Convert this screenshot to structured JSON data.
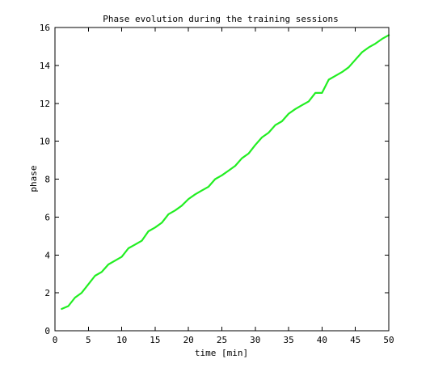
{
  "chart_data": {
    "type": "line",
    "title": "Phase evolution during the training sessions",
    "xlabel": "time [min]",
    "ylabel": "phase",
    "xlim": [
      0,
      50
    ],
    "ylim": [
      0,
      16
    ],
    "xticks": [
      0,
      5,
      10,
      15,
      20,
      25,
      30,
      35,
      40,
      45,
      50
    ],
    "yticks": [
      0,
      2,
      4,
      6,
      8,
      10,
      12,
      14,
      16
    ],
    "grid": false,
    "legend": "none",
    "series": [
      {
        "color": "#22ee22",
        "x": [
          1,
          2,
          3,
          4,
          5,
          6,
          7,
          8,
          9,
          10,
          11,
          12,
          13,
          14,
          15,
          16,
          17,
          18,
          19,
          20,
          21,
          22,
          23,
          24,
          25,
          26,
          27,
          28,
          29,
          30,
          31,
          32,
          33,
          34,
          35,
          36,
          37,
          38,
          39,
          40,
          41,
          42,
          43,
          44,
          45,
          46,
          47,
          48,
          49,
          50
        ],
        "y": [
          1.15,
          1.3,
          1.75,
          2.0,
          2.45,
          2.9,
          3.1,
          3.5,
          3.7,
          3.9,
          4.35,
          4.55,
          4.75,
          5.25,
          5.45,
          5.7,
          6.15,
          6.35,
          6.6,
          6.95,
          7.2,
          7.4,
          7.6,
          8.0,
          8.2,
          8.45,
          8.7,
          9.1,
          9.35,
          9.8,
          10.2,
          10.45,
          10.85,
          11.05,
          11.45,
          11.7,
          11.9,
          12.1,
          12.55,
          12.55,
          13.25,
          13.45,
          13.65,
          13.9,
          14.3,
          14.7,
          14.95,
          15.15,
          15.4,
          15.6
        ]
      }
    ]
  }
}
